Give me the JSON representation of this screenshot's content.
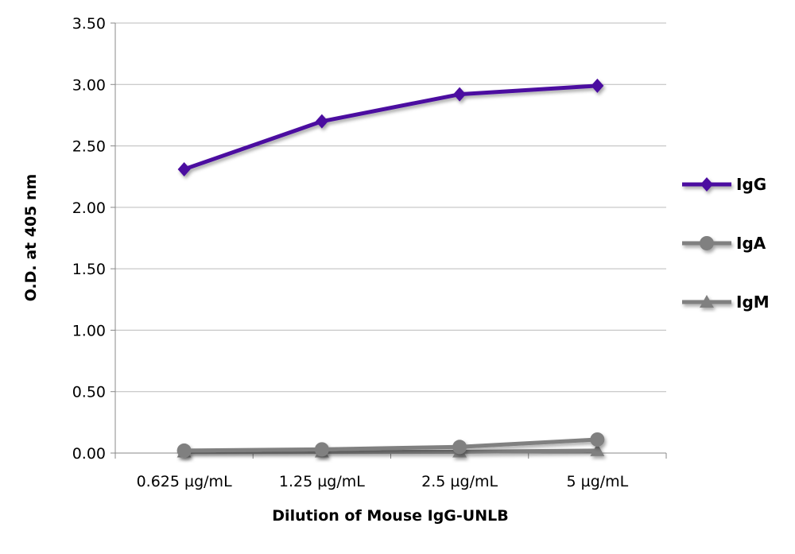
{
  "chart_data": {
    "type": "line",
    "title": "",
    "xlabel": "Dilution of Mouse IgG-UNLB",
    "ylabel": "O.D. at 405 nm",
    "categories": [
      "0.625 µg/mL",
      "1.25 µg/mL",
      "2.5 µg/mL",
      "5 µg/mL"
    ],
    "ylim": [
      0,
      3.5
    ],
    "yticks": [
      "0.00",
      "0.50",
      "1.00",
      "1.50",
      "2.00",
      "2.50",
      "3.00",
      "3.50"
    ],
    "grid": true,
    "legend_position": "right",
    "series": [
      {
        "name": "IgG",
        "values": [
          2.31,
          2.7,
          2.92,
          2.99
        ],
        "color": "#4b0fa0",
        "marker": "diamond"
      },
      {
        "name": "IgA",
        "values": [
          0.02,
          0.03,
          0.05,
          0.11
        ],
        "color": "#808080",
        "marker": "circle"
      },
      {
        "name": "IgM",
        "values": [
          0.01,
          0.01,
          0.01,
          0.02
        ],
        "color": "#808080",
        "marker": "triangle"
      }
    ]
  }
}
